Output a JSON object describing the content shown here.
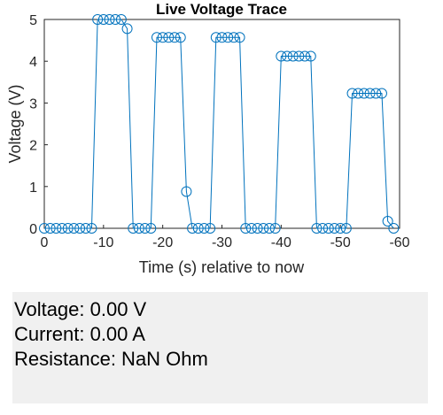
{
  "chart_data": {
    "type": "line",
    "title": "Live Voltage Trace",
    "xlabel": "Time (s) relative to now",
    "ylabel": "Voltage (V)",
    "xlim": [
      0,
      -60
    ],
    "ylim": [
      0,
      5
    ],
    "x_direction": "reversed",
    "xticks": [
      0,
      -10,
      -20,
      -30,
      -40,
      -50,
      -60
    ],
    "yticks": [
      0,
      1,
      2,
      3,
      4,
      5
    ],
    "grid": false,
    "legend": "none",
    "marker": "open-circle",
    "series_color": "#0072bd",
    "x": [
      0,
      -1,
      -2,
      -3,
      -4,
      -5,
      -6,
      -7,
      -8,
      -9,
      -10,
      -11,
      -12,
      -13,
      -14,
      -15,
      -16,
      -17,
      -18,
      -19,
      -20,
      -21,
      -22,
      -23,
      -24,
      -25,
      -26,
      -27,
      -28,
      -29,
      -30,
      -31,
      -32,
      -33,
      -34,
      -35,
      -36,
      -37,
      -38,
      -39,
      -40,
      -41,
      -42,
      -43,
      -44,
      -45,
      -46,
      -47,
      -48,
      -49,
      -50,
      -51,
      -52,
      -53,
      -54,
      -55,
      -56,
      -57,
      -58,
      -59
    ],
    "y": [
      0,
      0,
      0,
      0,
      0,
      0,
      0,
      0,
      0,
      5,
      5,
      5,
      5,
      5,
      4.78,
      0,
      0,
      0,
      0,
      4.57,
      4.57,
      4.57,
      4.57,
      4.57,
      0.88,
      0,
      0,
      0,
      0,
      4.57,
      4.57,
      4.57,
      4.57,
      4.57,
      0,
      0,
      0,
      0,
      0,
      0,
      4.12,
      4.12,
      4.12,
      4.12,
      4.12,
      4.12,
      0,
      0,
      0,
      0,
      0,
      0,
      3.23,
      3.23,
      3.23,
      3.23,
      3.23,
      3.23,
      0.17,
      0
    ]
  },
  "readout": {
    "voltage": "Voltage: 0.00 V",
    "current": "Current: 0.00 A",
    "resistance": "Resistance: NaN Ohm"
  },
  "colors": {
    "panel_background": "#f0f0f0",
    "axis_color": "#262626"
  }
}
